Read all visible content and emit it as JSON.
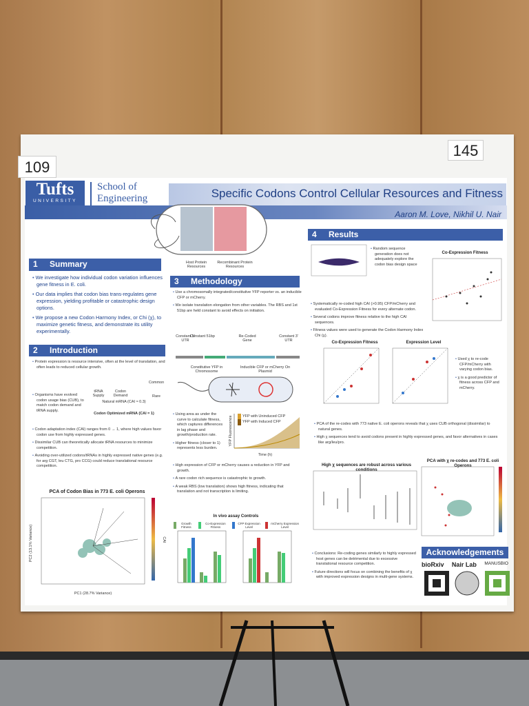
{
  "labels": {
    "left_number": "109",
    "right_number": "145"
  },
  "header": {
    "logo": "Tufts",
    "logo_sub": "UNIVERSITY",
    "school": "School of Engineering",
    "title": "Specific Codons Control Cellular Resources and Fitness",
    "authors": "Aaron M. Love, Nikhil U. Nair"
  },
  "cell_figure": {
    "left": "Host Protein Resources",
    "right": "Recombinant Protein Resources"
  },
  "summary": {
    "number": "1",
    "heading": "Summary",
    "bullets": [
      "We investigate how individual codon variation influences gene fitness in E. coli.",
      "Our data implies that codon bias trans-regulates gene expression, yielding profitable or catastrophic design options.",
      "We propose a new Codon Harmony Index, or Chi (χ), to maximize genetic fitness, and demonstrate its utility experimentally."
    ]
  },
  "introduction": {
    "number": "2",
    "heading": "Introduction",
    "bullets": [
      "Protein expression is resource intensive, often at the level of translation, and often leads to reduced cellular growth.",
      "Organisms have evolved codon usage bias (CUB), to match codon demand and tRNA supply.",
      "Codon adaptation index (CAI) ranges from 0 → 1, where high values favor codon use from highly expressed genes.",
      "Dissimilar CUB can theoretically allocate tRNA resources to minimize competition.",
      "Avoiding over-utilized codons/tRNAs in highly expressed native genes (e.g. for arg CGT, leu CTG, pro CCG) could reduce translational resource competition."
    ],
    "figure": {
      "supply": "tRNA Supply",
      "demand": "Codon Demand",
      "common": "Common",
      "rare": "Rare",
      "natural": "Natural mRNA (CAI ≈ 0.3)",
      "optimized": "Codon Optimized mRNA (CAI = 1)"
    },
    "pca_title": "PCA of Codon Bias in 773 E. coli Operons",
    "pca_x": "PC1 (28.7% Variance)",
    "pca_y": "PC2 (13.1% Variance)",
    "pca_scale": "CAI"
  },
  "methodology": {
    "number": "3",
    "heading": "Methodology",
    "bullets_top": [
      "Use a chromosomally integrated/constitutive YFP reporter vs. an inducible CFP or mCherry.",
      "We isolate translation elongation from other variables. The RBS and 1st 51bp are held constant to avoid effects on initiation."
    ],
    "construct": [
      "Constant 5' UTR",
      "Constant 51bp",
      "Re-Coded Gene",
      "Constant 3' UTR"
    ],
    "reporters": [
      "Constitutive YFP in Chromosome",
      "Inducible CFP or mCherry On Plasmid"
    ],
    "bullets_bottom": [
      "Using area as under the curve to calculate fitness, which captures differences in lag phase and growth/production rate.",
      "Higher fitness (closer to 1) represents less burden.",
      "High expression of CFP or mCherry causes a reduction in YFP and growth.",
      "A rare codon rich sequence is catastrophic to growth.",
      "A weak RBS (low translation) shows high fitness, indicating that translation and not transcription is limiting."
    ],
    "growth_legend": [
      "YFP with Uninduced CFP",
      "YFP with Induced CFP"
    ],
    "growth_x": "Time (h)",
    "growth_y": "YFP Fluorescence",
    "controls_title": "In vivo assay Controls",
    "controls_legend": [
      "Growth Fitness",
      "Co-Expression Fitness",
      "CFP Expression Level",
      "mCherry Expression Level"
    ]
  },
  "results": {
    "number": "4",
    "heading": "Results",
    "random_note": "Random sequence generation does not adequately explore the codon bias design space",
    "coexp_title": "Co-Expression Fitness",
    "bullets_a": [
      "Systematically re-coded high CAI (>0.95) CFP/mCherry and evaluated Co-Expression Fitness for every alternate codon.",
      "Several codons improve fitness relative to the high CAI sequences.",
      "Fitness values were used to generate the Codon Harmony Index Chi (χ)."
    ],
    "chart_b_title": "Co-Expression Fitness",
    "chart_c_title": "Expression Level",
    "bullets_b": [
      "Used χ to re-code CFP/mCherry with varying codon bias.",
      "χ is a good predictor of fitness across CFP and mCherry."
    ],
    "bullets_c": [
      "PCA of the re-codes with 773 native E. coli operons reveals that χ uses CUB orthogonal (dissimilar) to natural genes.",
      "High χ sequences tend to avoid codons present in highly expressed genes, and favor alternatives in cases like arg/leu/pro."
    ],
    "robust_title": "High χ sequences are robust across various conditions",
    "pca_title": "PCA with χ re-codes and 773 E. coli Operons",
    "conclusions": "Conclusions: Re-coding genes similarly to highly expressed host genes can be detrimental due to excessive translational resource competition.",
    "future": "Future directions will focus on combining the benefits of χ with improved expression designs in multi-gene systems."
  },
  "acknowledgements": {
    "heading": "Acknowledgements",
    "logos": [
      "bioRxiv",
      "Nair Lab",
      "MANUSBIO"
    ]
  }
}
